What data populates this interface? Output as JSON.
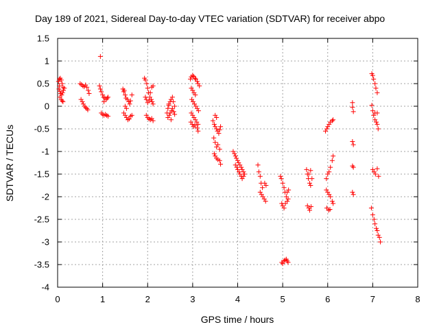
{
  "chart_data": {
    "type": "scatter",
    "title": "Day 189 of 2021, Sidereal Day-to-day VTEC variation (SDTVAR) for receiver abpo",
    "xlabel": "GPS time / hours",
    "ylabel": "SDTVAR / TECUs",
    "xlim": [
      0,
      8
    ],
    "ylim": [
      -4,
      1.5
    ],
    "xticks": [
      0,
      1,
      2,
      3,
      4,
      5,
      6,
      7,
      8
    ],
    "xtick_labels": [
      "0",
      "1",
      "2",
      "3",
      "4",
      "5",
      "6",
      "7",
      "8"
    ],
    "yticks": [
      1.5,
      1,
      0.5,
      0,
      -0.5,
      -1,
      -1.5,
      -2,
      -2.5,
      -3,
      -3.5,
      -4
    ],
    "ytick_labels": [
      "1.5",
      "1",
      "0.5",
      "0",
      "-0.5",
      "-1",
      "-1.5",
      "-2",
      "-2.5",
      "-3",
      "-3.5",
      "-4"
    ],
    "grid": true,
    "marker": "+",
    "color": "#ff0000",
    "series": [
      {
        "name": "SDTVAR",
        "points": [
          [
            0.02,
            0.55
          ],
          [
            0.04,
            0.6
          ],
          [
            0.06,
            0.62
          ],
          [
            0.08,
            0.58
          ],
          [
            0.1,
            0.5
          ],
          [
            0.12,
            0.42
          ],
          [
            0.03,
            0.38
          ],
          [
            0.05,
            0.33
          ],
          [
            0.07,
            0.28
          ],
          [
            0.09,
            0.25
          ],
          [
            0.11,
            0.3
          ],
          [
            0.13,
            0.35
          ],
          [
            0.15,
            0.4
          ],
          [
            0.05,
            0.2
          ],
          [
            0.08,
            0.15
          ],
          [
            0.1,
            0.12
          ],
          [
            0.12,
            0.1
          ],
          [
            0.04,
            0.45
          ],
          [
            0.5,
            0.5
          ],
          [
            0.53,
            0.48
          ],
          [
            0.56,
            0.45
          ],
          [
            0.59,
            0.43
          ],
          [
            0.62,
            0.47
          ],
          [
            0.65,
            0.42
          ],
          [
            0.68,
            0.35
          ],
          [
            0.7,
            0.28
          ],
          [
            0.55,
            0.1
          ],
          [
            0.57,
            0.05
          ],
          [
            0.6,
            0.0
          ],
          [
            0.62,
            -0.03
          ],
          [
            0.65,
            -0.05
          ],
          [
            0.67,
            -0.08
          ],
          [
            0.52,
            0.15
          ],
          [
            0.95,
            1.1
          ],
          [
            0.93,
            0.45
          ],
          [
            0.95,
            0.38
          ],
          [
            0.97,
            0.32
          ],
          [
            1.0,
            0.25
          ],
          [
            1.02,
            0.2
          ],
          [
            1.05,
            0.18
          ],
          [
            1.08,
            0.15
          ],
          [
            1.1,
            0.18
          ],
          [
            1.12,
            0.2
          ],
          [
            1.03,
            0.1
          ],
          [
            0.97,
            -0.15
          ],
          [
            1.0,
            -0.18
          ],
          [
            1.03,
            -0.2
          ],
          [
            1.06,
            -0.18
          ],
          [
            1.09,
            -0.2
          ],
          [
            1.12,
            -0.22
          ],
          [
            1.45,
            0.38
          ],
          [
            1.47,
            0.32
          ],
          [
            1.5,
            0.25
          ],
          [
            1.52,
            0.18
          ],
          [
            1.55,
            0.15
          ],
          [
            1.58,
            0.1
          ],
          [
            1.6,
            0.05
          ],
          [
            1.62,
            0.12
          ],
          [
            1.65,
            0.25
          ],
          [
            1.5,
            0.0
          ],
          [
            1.53,
            -0.05
          ],
          [
            1.47,
            -0.15
          ],
          [
            1.5,
            -0.2
          ],
          [
            1.53,
            -0.25
          ],
          [
            1.56,
            -0.3
          ],
          [
            1.59,
            -0.28
          ],
          [
            1.62,
            -0.22
          ],
          [
            1.65,
            -0.2
          ],
          [
            1.48,
            0.35
          ],
          [
            1.93,
            0.62
          ],
          [
            1.95,
            0.58
          ],
          [
            1.98,
            0.5
          ],
          [
            2.0,
            0.4
          ],
          [
            2.02,
            0.3
          ],
          [
            2.05,
            0.2
          ],
          [
            2.08,
            0.15
          ],
          [
            2.1,
            0.1
          ],
          [
            2.12,
            0.05
          ],
          [
            1.95,
            0.2
          ],
          [
            1.97,
            0.15
          ],
          [
            2.0,
            0.08
          ],
          [
            2.03,
            0.12
          ],
          [
            2.06,
            0.3
          ],
          [
            2.09,
            0.42
          ],
          [
            2.12,
            0.45
          ],
          [
            1.97,
            -0.2
          ],
          [
            2.0,
            -0.25
          ],
          [
            2.03,
            -0.28
          ],
          [
            2.06,
            -0.3
          ],
          [
            2.09,
            -0.27
          ],
          [
            2.12,
            -0.32
          ],
          [
            2.43,
            -0.15
          ],
          [
            2.45,
            -0.05
          ],
          [
            2.47,
            0.05
          ],
          [
            2.5,
            0.1
          ],
          [
            2.52,
            0.15
          ],
          [
            2.55,
            0.2
          ],
          [
            2.57,
            0.1
          ],
          [
            2.6,
            0.0
          ],
          [
            2.45,
            -0.25
          ],
          [
            2.48,
            -0.2
          ],
          [
            2.5,
            -0.15
          ],
          [
            2.53,
            -0.1
          ],
          [
            2.55,
            -0.05
          ],
          [
            2.58,
            -0.12
          ],
          [
            2.6,
            -0.18
          ],
          [
            2.47,
            0.02
          ],
          [
            2.52,
            -0.3
          ],
          [
            2.95,
            0.6
          ],
          [
            2.97,
            0.65
          ],
          [
            3.0,
            0.68
          ],
          [
            3.02,
            0.66
          ],
          [
            3.05,
            0.62
          ],
          [
            3.07,
            0.6
          ],
          [
            3.1,
            0.55
          ],
          [
            3.12,
            0.5
          ],
          [
            3.15,
            0.45
          ],
          [
            2.97,
            0.4
          ],
          [
            3.0,
            0.35
          ],
          [
            3.03,
            0.3
          ],
          [
            3.06,
            0.25
          ],
          [
            2.98,
            0.15
          ],
          [
            3.01,
            0.1
          ],
          [
            3.04,
            0.05
          ],
          [
            3.07,
            0.0
          ],
          [
            3.1,
            -0.05
          ],
          [
            3.13,
            -0.1
          ],
          [
            2.97,
            -0.15
          ],
          [
            3.0,
            -0.2
          ],
          [
            3.03,
            -0.25
          ],
          [
            3.06,
            -0.3
          ],
          [
            3.09,
            -0.35
          ],
          [
            3.12,
            -0.4
          ],
          [
            2.96,
            -0.35
          ],
          [
            2.99,
            -0.4
          ],
          [
            3.02,
            -0.45
          ],
          [
            3.05,
            -0.42
          ],
          [
            3.1,
            -0.48
          ],
          [
            3.12,
            -0.55
          ],
          [
            3.45,
            -0.32
          ],
          [
            3.48,
            -0.4
          ],
          [
            3.5,
            -0.45
          ],
          [
            3.53,
            -0.5
          ],
          [
            3.55,
            -0.55
          ],
          [
            3.58,
            -0.6
          ],
          [
            3.6,
            -0.52
          ],
          [
            3.62,
            -0.45
          ],
          [
            3.47,
            -0.7
          ],
          [
            3.5,
            -0.8
          ],
          [
            3.53,
            -0.9
          ],
          [
            3.56,
            -0.85
          ],
          [
            3.6,
            -0.95
          ],
          [
            3.48,
            -1.05
          ],
          [
            3.5,
            -1.1
          ],
          [
            3.53,
            -1.15
          ],
          [
            3.56,
            -1.18
          ],
          [
            3.6,
            -1.2
          ],
          [
            3.62,
            -1.28
          ],
          [
            3.5,
            -0.2
          ],
          [
            3.53,
            -0.25
          ],
          [
            3.9,
            -1.0
          ],
          [
            3.93,
            -1.05
          ],
          [
            3.95,
            -1.1
          ],
          [
            3.97,
            -1.15
          ],
          [
            4.0,
            -1.2
          ],
          [
            4.02,
            -1.25
          ],
          [
            4.05,
            -1.3
          ],
          [
            4.08,
            -1.35
          ],
          [
            4.1,
            -1.4
          ],
          [
            4.13,
            -1.45
          ],
          [
            3.95,
            -1.3
          ],
          [
            3.98,
            -1.35
          ],
          [
            4.0,
            -1.4
          ],
          [
            4.03,
            -1.45
          ],
          [
            4.05,
            -1.5
          ],
          [
            4.08,
            -1.55
          ],
          [
            4.1,
            -1.6
          ],
          [
            4.13,
            -1.55
          ],
          [
            4.15,
            -1.5
          ],
          [
            4.45,
            -1.3
          ],
          [
            4.47,
            -1.45
          ],
          [
            4.5,
            -1.55
          ],
          [
            4.52,
            -1.7
          ],
          [
            4.55,
            -1.8
          ],
          [
            4.5,
            -1.9
          ],
          [
            4.53,
            -1.95
          ],
          [
            4.56,
            -2.0
          ],
          [
            4.59,
            -2.05
          ],
          [
            4.62,
            -2.1
          ],
          [
            4.6,
            -1.7
          ],
          [
            4.63,
            -1.75
          ],
          [
            4.95,
            -1.55
          ],
          [
            4.97,
            -1.6
          ],
          [
            5.0,
            -1.7
          ],
          [
            5.03,
            -1.8
          ],
          [
            5.05,
            -1.9
          ],
          [
            5.08,
            -2.0
          ],
          [
            5.1,
            -2.1
          ],
          [
            5.12,
            -2.05
          ],
          [
            4.98,
            -2.15
          ],
          [
            5.0,
            -2.2
          ],
          [
            5.03,
            -2.25
          ],
          [
            5.06,
            -2.15
          ],
          [
            5.1,
            -1.9
          ],
          [
            5.13,
            -1.85
          ],
          [
            4.98,
            -3.45
          ],
          [
            5.0,
            -3.48
          ],
          [
            5.03,
            -3.42
          ],
          [
            5.05,
            -3.4
          ],
          [
            5.08,
            -3.38
          ],
          [
            5.1,
            -3.42
          ],
          [
            5.12,
            -3.45
          ],
          [
            5.53,
            -1.4
          ],
          [
            5.55,
            -1.5
          ],
          [
            5.57,
            -1.6
          ],
          [
            5.6,
            -1.7
          ],
          [
            5.62,
            -1.75
          ],
          [
            5.65,
            -1.6
          ],
          [
            5.55,
            -2.2
          ],
          [
            5.58,
            -2.25
          ],
          [
            5.6,
            -2.3
          ],
          [
            5.63,
            -2.22
          ],
          [
            5.58,
            -1.5
          ],
          [
            5.62,
            -1.42
          ],
          [
            5.95,
            -0.55
          ],
          [
            5.98,
            -0.5
          ],
          [
            6.0,
            -0.45
          ],
          [
            6.03,
            -0.4
          ],
          [
            6.06,
            -0.35
          ],
          [
            6.1,
            -0.32
          ],
          [
            6.12,
            -0.3
          ],
          [
            5.97,
            -1.6
          ],
          [
            6.0,
            -1.5
          ],
          [
            6.03,
            -1.45
          ],
          [
            6.06,
            -1.35
          ],
          [
            6.1,
            -1.2
          ],
          [
            6.12,
            -1.1
          ],
          [
            5.97,
            -1.85
          ],
          [
            6.0,
            -1.9
          ],
          [
            6.03,
            -1.95
          ],
          [
            6.06,
            -2.0
          ],
          [
            6.1,
            -2.1
          ],
          [
            6.12,
            -2.15
          ],
          [
            5.98,
            -2.25
          ],
          [
            6.02,
            -2.3
          ],
          [
            6.05,
            -2.28
          ],
          [
            6.55,
            0.08
          ],
          [
            6.55,
            -0.02
          ],
          [
            6.57,
            -0.12
          ],
          [
            6.55,
            -0.78
          ],
          [
            6.57,
            -0.85
          ],
          [
            6.55,
            -1.32
          ],
          [
            6.57,
            -1.35
          ],
          [
            6.55,
            -1.9
          ],
          [
            6.57,
            -1.95
          ],
          [
            6.98,
            0.72
          ],
          [
            7.0,
            0.68
          ],
          [
            7.02,
            0.6
          ],
          [
            7.05,
            0.5
          ],
          [
            7.07,
            0.4
          ],
          [
            7.1,
            0.3
          ],
          [
            6.98,
            0.02
          ],
          [
            7.0,
            -0.1
          ],
          [
            7.02,
            -0.2
          ],
          [
            7.05,
            -0.3
          ],
          [
            7.08,
            -0.35
          ],
          [
            7.1,
            -0.4
          ],
          [
            7.12,
            -0.5
          ],
          [
            7.05,
            -0.15
          ],
          [
            7.1,
            -0.15
          ],
          [
            7.0,
            -1.4
          ],
          [
            7.03,
            -1.45
          ],
          [
            7.06,
            -1.5
          ],
          [
            7.1,
            -1.38
          ],
          [
            7.13,
            -1.55
          ],
          [
            6.97,
            -2.25
          ],
          [
            7.0,
            -2.4
          ],
          [
            7.03,
            -2.5
          ],
          [
            7.05,
            -2.6
          ],
          [
            7.08,
            -2.7
          ],
          [
            7.1,
            -2.75
          ],
          [
            7.12,
            -2.85
          ],
          [
            7.15,
            -2.9
          ],
          [
            7.17,
            -3.0
          ]
        ]
      }
    ]
  }
}
